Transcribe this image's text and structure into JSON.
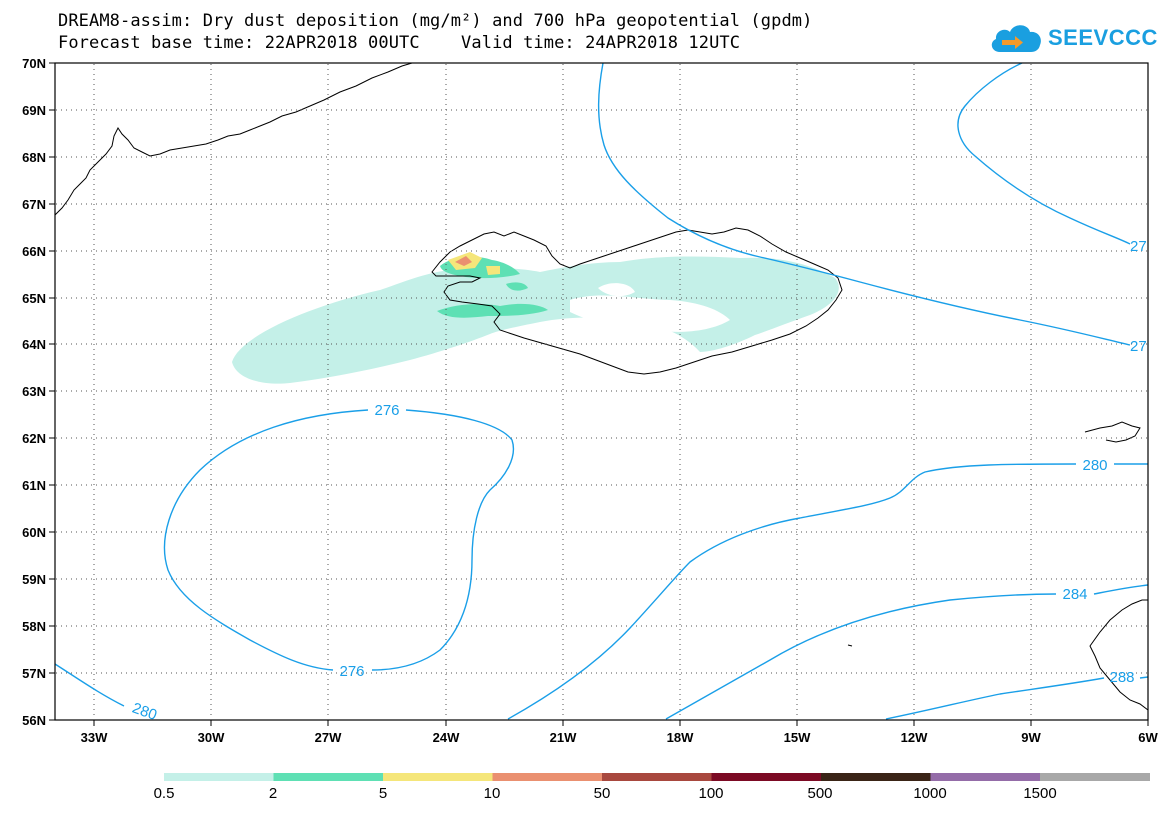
{
  "header": {
    "title_line1": "DREAM8-assim: Dry dust deposition (mg/m²) and 700 hPa geopotential (gpdm)",
    "title_line2": "Forecast base time: 22APR2018 00UTC    Valid time: 24APR2018 12UTC"
  },
  "logo": {
    "text": "SEEVCCC",
    "icon": "cloud-logo-icon",
    "color": "#1a9fe0"
  },
  "map": {
    "lat_labels": [
      "70N",
      "69N",
      "68N",
      "67N",
      "66N",
      "65N",
      "64N",
      "63N",
      "62N",
      "61N",
      "60N",
      "59N",
      "58N",
      "57N",
      "56N"
    ],
    "lon_labels": [
      "33W",
      "30W",
      "27W",
      "24W",
      "21W",
      "18W",
      "15W",
      "12W",
      "9W",
      "6W"
    ],
    "contour_labels": {
      "c276_top": "276",
      "c276_bottom": "276",
      "c280_bl": "280",
      "c280_right": "280",
      "c284": "284",
      "c288": "288",
      "c27_upper": "27",
      "c27_lower": "27"
    },
    "contour_color": "#1a9fe8"
  },
  "legend": {
    "colors": [
      "#c4f0e8",
      "#5ee0b4",
      "#f5e67a",
      "#ea9070",
      "#a8483e",
      "#7c0a24",
      "#3a2416",
      "#946ca8",
      "#a8a8a8"
    ],
    "labels": [
      "0.5",
      "2",
      "5",
      "10",
      "50",
      "100",
      "500",
      "1000",
      "1500"
    ]
  }
}
